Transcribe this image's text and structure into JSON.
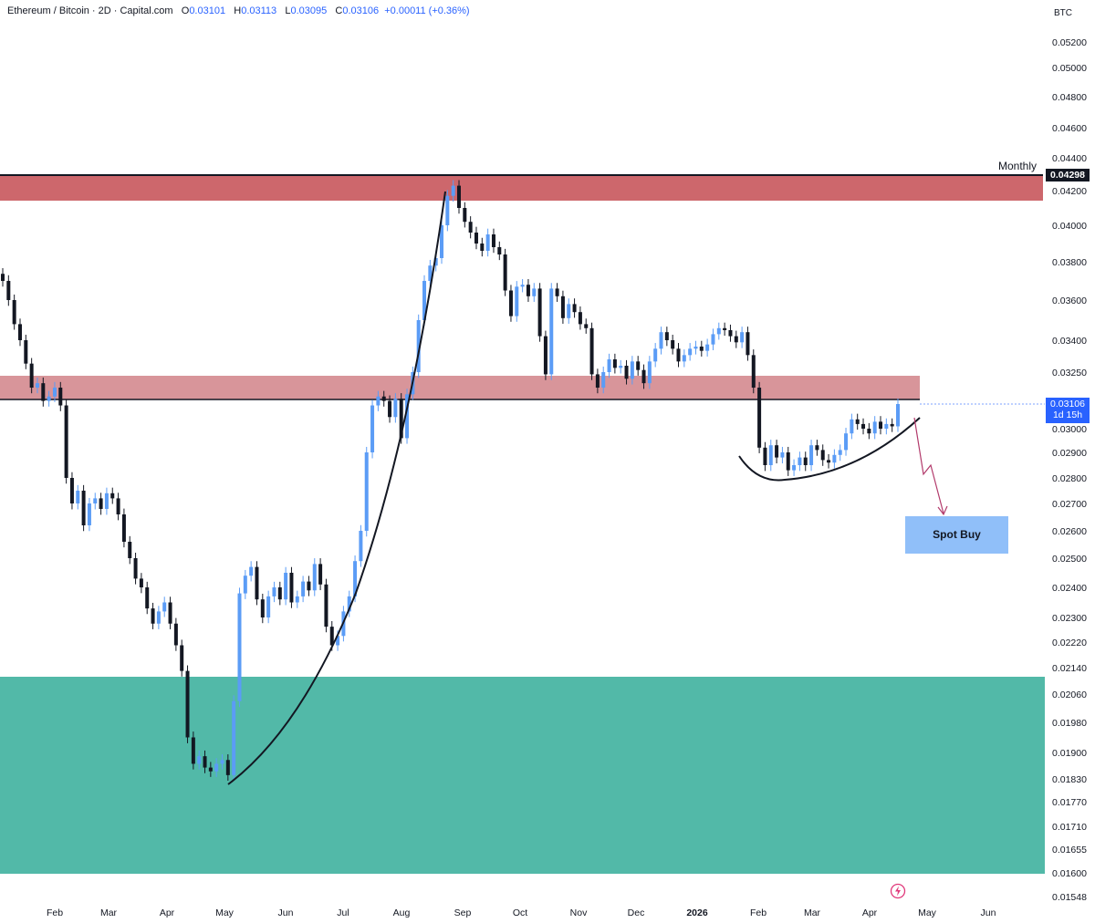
{
  "header": {
    "symbol": "Ethereum / Bitcoin · 2D · Capital.com",
    "o_label": "O",
    "o_value": "0.03101",
    "h_label": "H",
    "h_value": "0.03113",
    "l_label": "L",
    "l_value": "0.03095",
    "c_label": "C",
    "c_value": "0.03106",
    "change": "+0.00011 (+0.36%)"
  },
  "currency": "BTC",
  "colors": {
    "up": "#5b9cf6",
    "down": "#131722",
    "resistance_top": "#cd676c",
    "resistance_mid": "#d8959a",
    "demand": "#52b9a8",
    "accent": "#2962ff",
    "annotation_arrow": "#b23a6b",
    "spot_box": "#90bff9"
  },
  "annotations": {
    "monthly_label": "Monthly",
    "monthly_price": "0.04298",
    "current_price": "0.03106",
    "countdown": "1d 15h",
    "spot_buy_label": "Spot Buy",
    "alert_icon": "lightning-icon"
  },
  "chart_data": {
    "type": "candlestick",
    "title": "Ethereum / Bitcoin · 2D · Capital.com",
    "xlabel": "",
    "ylabel": "",
    "price_ticks": [
      "0.05200",
      "0.05000",
      "0.04800",
      "0.04600",
      "0.04400",
      "0.04200",
      "0.04000",
      "0.03800",
      "0.03600",
      "0.03400",
      "0.03250",
      "0.03000",
      "0.02900",
      "0.02800",
      "0.02700",
      "0.02600",
      "0.02500",
      "0.02400",
      "0.02300",
      "0.02220",
      "0.02140",
      "0.02060",
      "0.01980",
      "0.01900",
      "0.01830",
      "0.01770",
      "0.01710",
      "0.01655",
      "0.01600",
      "0.01548"
    ],
    "date_ticks": [
      {
        "label": "Feb",
        "bold": false
      },
      {
        "label": "Mar",
        "bold": false
      },
      {
        "label": "Apr",
        "bold": false
      },
      {
        "label": "May",
        "bold": false
      },
      {
        "label": "Jun",
        "bold": false
      },
      {
        "label": "Jul",
        "bold": false
      },
      {
        "label": "Aug",
        "bold": false
      },
      {
        "label": "Sep",
        "bold": false
      },
      {
        "label": "Oct",
        "bold": false
      },
      {
        "label": "Nov",
        "bold": false
      },
      {
        "label": "Dec",
        "bold": false
      },
      {
        "label": "2026",
        "bold": true
      },
      {
        "label": "Feb",
        "bold": false
      },
      {
        "label": "Mar",
        "bold": false
      },
      {
        "label": "Apr",
        "bold": false
      },
      {
        "label": "May",
        "bold": false
      },
      {
        "label": "Jun",
        "bold": false
      }
    ],
    "zones": [
      {
        "name": "monthly-resistance",
        "from": 0.0415,
        "to": 0.04298
      },
      {
        "name": "resistance",
        "from": 0.03106,
        "to": 0.0322
      },
      {
        "name": "demand",
        "from": 0.016,
        "to": 0.0214
      }
    ],
    "horizontal_levels": [
      0.04298,
      0.03106
    ],
    "closes": [
      0.037,
      0.036,
      0.0348,
      0.034,
      0.0329,
      0.0318,
      0.032,
      0.0312,
      0.0314,
      0.0318,
      0.031,
      0.028,
      0.027,
      0.0275,
      0.0262,
      0.027,
      0.0272,
      0.0268,
      0.0274,
      0.0272,
      0.0266,
      0.0256,
      0.025,
      0.0243,
      0.024,
      0.0233,
      0.0228,
      0.0232,
      0.0235,
      0.0228,
      0.0221,
      0.0213,
      0.0194,
      0.0187,
      0.0189,
      0.0186,
      0.0185,
      0.0187,
      0.0188,
      0.0184,
      0.0204,
      0.0238,
      0.0244,
      0.0247,
      0.0236,
      0.023,
      0.0237,
      0.024,
      0.0236,
      0.0245,
      0.0235,
      0.0237,
      0.0242,
      0.0239,
      0.0248,
      0.0241,
      0.0227,
      0.0221,
      0.0224,
      0.0232,
      0.0237,
      0.0249,
      0.026,
      0.029,
      0.031,
      0.0314,
      0.0312,
      0.0305,
      0.0313,
      0.0296,
      0.0315,
      0.0325,
      0.035,
      0.037,
      0.0378,
      0.0382,
      0.04,
      0.0417,
      0.0423,
      0.041,
      0.0402,
      0.0396,
      0.039,
      0.0386,
      0.0395,
      0.0388,
      0.0384,
      0.0365,
      0.0352,
      0.0367,
      0.0368,
      0.0362,
      0.0366,
      0.0342,
      0.0324,
      0.0366,
      0.0362,
      0.0351,
      0.0358,
      0.0354,
      0.0348,
      0.0346,
      0.0324,
      0.0318,
      0.0325,
      0.0331,
      0.0327,
      0.0328,
      0.0322,
      0.033,
      0.0326,
      0.032,
      0.033,
      0.0336,
      0.0344,
      0.034,
      0.0336,
      0.033,
      0.0333,
      0.0336,
      0.0337,
      0.0335,
      0.0338,
      0.0343,
      0.0346,
      0.0345,
      0.0342,
      0.0339,
      0.0344,
      0.0333,
      0.0318,
      0.0292,
      0.0285,
      0.0293,
      0.0288,
      0.029,
      0.0283,
      0.0285,
      0.0288,
      0.0285,
      0.0293,
      0.0291,
      0.0287,
      0.0286,
      0.0289,
      0.0291,
      0.0298,
      0.0304,
      0.0302,
      0.03,
      0.0298,
      0.0303,
      0.03,
      0.0302,
      0.0301,
      0.03106
    ]
  }
}
